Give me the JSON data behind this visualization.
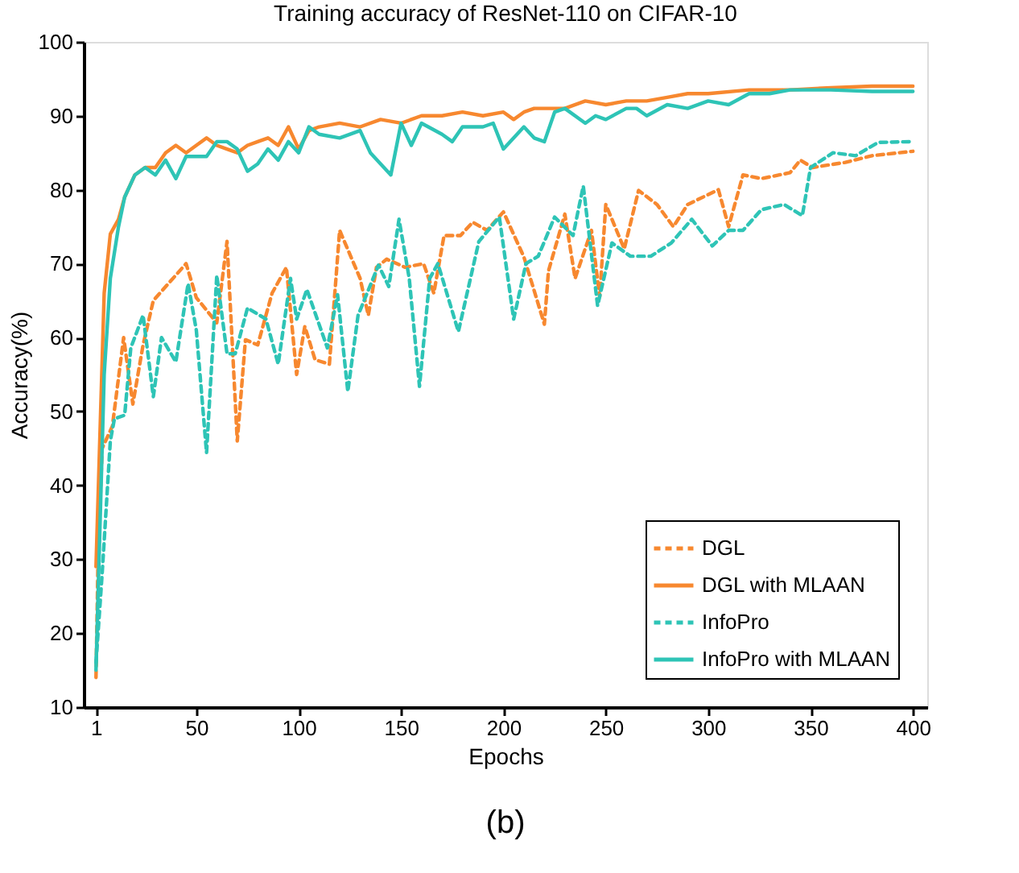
{
  "chart_data": {
    "type": "line",
    "title": "Training accuracy of ResNet-110 on CIFAR-10",
    "xlabel": "Epochs",
    "ylabel": "Accuracy(%)",
    "annotations": [
      "(b)"
    ],
    "xlim": [
      -5,
      407
    ],
    "ylim": [
      10,
      100
    ],
    "xticks": [
      1,
      50,
      100,
      150,
      200,
      250,
      300,
      350,
      400
    ],
    "yticks": [
      10,
      20,
      30,
      40,
      50,
      60,
      70,
      80,
      90,
      100
    ],
    "grid": false,
    "legend": "bottom right",
    "marker": "none",
    "series": [
      {
        "name": "DGL",
        "color": "#f7882f",
        "line_style": "dashed",
        "x": [
          1,
          2,
          4,
          9,
          14.5,
          19,
          24,
          29,
          45,
          50,
          60,
          65,
          70,
          74,
          80,
          87,
          94,
          99,
          103,
          108,
          115,
          120,
          130,
          134,
          138,
          143,
          152,
          161,
          166,
          171,
          179,
          185,
          192,
          200,
          210,
          220,
          222,
          230,
          235,
          243,
          247,
          250,
          259,
          266,
          275,
          283,
          290,
          305,
          310,
          317,
          326,
          340,
          345,
          351,
          367,
          380,
          400
        ],
        "values": [
          14,
          30,
          45,
          48,
          60,
          51,
          59,
          65,
          70,
          65.4,
          62,
          73,
          46,
          59.7,
          59,
          66,
          69.5,
          55,
          61.5,
          57,
          56.4,
          74.5,
          68,
          63,
          69.5,
          70.6,
          69.5,
          70,
          66,
          73.8,
          73.8,
          75.6,
          74.5,
          77,
          70.9,
          61.8,
          69,
          76.7,
          68,
          74.5,
          65.5,
          78,
          72,
          79.9,
          78,
          75,
          78,
          80,
          75,
          82,
          81.5,
          82.3,
          84,
          83,
          83.7,
          84.6,
          85.2
        ]
      },
      {
        "name": "DGL with MLAAN",
        "color": "#f7882f",
        "line_style": "solid",
        "x": [
          1,
          5,
          8,
          12,
          15,
          20,
          25,
          30,
          35,
          40,
          45,
          50,
          55,
          60,
          65,
          70,
          75,
          80,
          85,
          90,
          95,
          100,
          105,
          110,
          120,
          130,
          140,
          150,
          160,
          170,
          180,
          190,
          200,
          205,
          210,
          215,
          220,
          230,
          240,
          250,
          260,
          270,
          280,
          290,
          300,
          320,
          340,
          360,
          380,
          400
        ],
        "values": [
          29,
          66,
          74,
          76,
          79,
          82,
          83,
          83,
          85,
          86,
          85,
          86,
          87,
          86,
          85.5,
          85,
          86,
          86.5,
          87,
          86,
          88.5,
          85.5,
          88,
          88.5,
          89,
          88.5,
          89.5,
          89,
          90,
          90,
          90.5,
          90,
          90.5,
          89.5,
          90.5,
          91,
          91,
          91,
          92,
          91.5,
          92,
          92,
          92.5,
          93,
          93,
          93.5,
          93.5,
          93.8,
          94,
          94
        ]
      },
      {
        "name": "InfoPro",
        "color": "#2ec4b6",
        "line_style": "dashed",
        "x": [
          1,
          4,
          8,
          10,
          15,
          18,
          24,
          29,
          33,
          40,
          46,
          50,
          55,
          60,
          65,
          69,
          75,
          84,
          90,
          96,
          99,
          104,
          114,
          119,
          124,
          129,
          139,
          144,
          149,
          154,
          159,
          164,
          168,
          178,
          188,
          198,
          205,
          211,
          217,
          225,
          234,
          239,
          246,
          253,
          262,
          272,
          282,
          292,
          302,
          310,
          317,
          326,
          337,
          346,
          350,
          361,
          372,
          383,
          400
        ],
        "values": [
          16,
          28,
          46,
          49,
          49.5,
          58.6,
          63,
          52,
          60,
          56.7,
          67.3,
          61,
          44.4,
          68.4,
          57.8,
          57.8,
          64,
          62.5,
          56.4,
          68,
          62.5,
          66.5,
          58.6,
          65.8,
          52.7,
          63,
          69.8,
          66.9,
          76,
          68,
          53.4,
          68,
          70,
          60.8,
          73,
          76.3,
          62.5,
          70,
          71,
          76.3,
          73.8,
          80.5,
          64.3,
          72.8,
          71,
          71,
          72.8,
          76,
          72.4,
          74.5,
          74.5,
          77.3,
          78,
          76.5,
          83,
          85,
          84.6,
          86.4,
          86.5
        ]
      },
      {
        "name": "InfoPro with MLAAN",
        "color": "#2ec4b6",
        "line_style": "solid",
        "x": [
          1,
          5,
          8,
          12,
          15,
          20,
          25,
          30,
          35,
          40,
          45,
          50,
          55,
          60,
          65,
          70,
          75,
          80,
          85,
          90,
          95,
          100,
          105,
          110,
          120,
          130,
          135,
          140,
          145,
          150,
          155,
          160,
          170,
          175,
          180,
          190,
          195,
          200,
          210,
          215,
          220,
          225,
          230,
          240,
          245,
          250,
          260,
          265,
          270,
          280,
          290,
          300,
          310,
          320,
          330,
          340,
          360,
          380,
          400
        ],
        "values": [
          15,
          55,
          68,
          75,
          79,
          82,
          83,
          82,
          84,
          81.5,
          84.5,
          84.5,
          84.5,
          86.5,
          86.5,
          85.5,
          82.5,
          83.5,
          85.5,
          84,
          86.5,
          85,
          88.5,
          87.5,
          87,
          88,
          85,
          83.5,
          82,
          89,
          86,
          89,
          87.5,
          86.5,
          88.5,
          88.5,
          89,
          85.5,
          88.5,
          87,
          86.5,
          90.5,
          91,
          89,
          90,
          89.5,
          91,
          91,
          90,
          91.5,
          91,
          92,
          91.5,
          93,
          93,
          93.5,
          93.5,
          93.3,
          93.3
        ]
      }
    ]
  }
}
